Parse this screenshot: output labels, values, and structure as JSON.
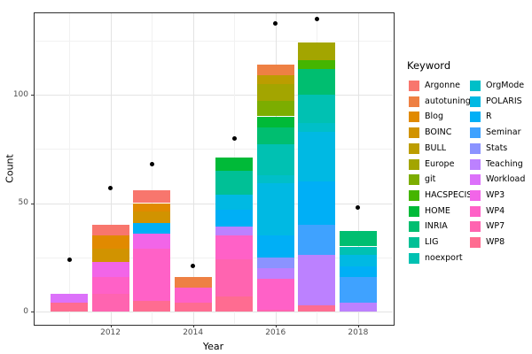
{
  "axes": {
    "x_title": "Year",
    "y_title": "Count",
    "y_major_ticks": [
      0,
      50,
      100
    ],
    "y_minor_ticks": [
      25,
      75,
      125
    ],
    "x_major_ticks": [
      2012,
      2014,
      2016,
      2018
    ],
    "x_minor_ticks": [
      2011,
      2013,
      2015,
      2017
    ]
  },
  "legend": {
    "title": "Keyword",
    "items": [
      {
        "label": "Argonne",
        "color": "#F8766D"
      },
      {
        "label": "autotuning",
        "color": "#EE8043"
      },
      {
        "label": "Blog",
        "color": "#E18A00"
      },
      {
        "label": "BOINC",
        "color": "#D19300"
      },
      {
        "label": "BULL",
        "color": "#BC9D00"
      },
      {
        "label": "Europe",
        "color": "#A3A500"
      },
      {
        "label": "git",
        "color": "#7CAD00"
      },
      {
        "label": "HACSPECIS",
        "color": "#45B500"
      },
      {
        "label": "HOME",
        "color": "#00BA38"
      },
      {
        "label": "INRIA",
        "color": "#00BE70"
      },
      {
        "label": "LIG",
        "color": "#00C096"
      },
      {
        "label": "noexport",
        "color": "#00C1B2"
      },
      {
        "label": "OrgMode",
        "color": "#00BFC8"
      },
      {
        "label": "POLARIS",
        "color": "#00B9E3"
      },
      {
        "label": "R",
        "color": "#00AFF6"
      },
      {
        "label": "Seminar",
        "color": "#3FA2FF"
      },
      {
        "label": "Stats",
        "color": "#8B93FF"
      },
      {
        "label": "Teaching",
        "color": "#BC81FF"
      },
      {
        "label": "Workload",
        "color": "#DC71FA"
      },
      {
        "label": "WP3",
        "color": "#F265E8"
      },
      {
        "label": "WP4",
        "color": "#FF61C7"
      },
      {
        "label": "WP7",
        "color": "#FF64B0"
      },
      {
        "label": "WP8",
        "color": "#FF6C91"
      }
    ],
    "column_split": 12
  },
  "chart_data": {
    "type": "bar",
    "stacked": true,
    "title": "",
    "xlabel": "Year",
    "ylabel": "Count",
    "ylim": [
      0,
      140
    ],
    "grid": true,
    "legend_position": "right",
    "categories": [
      2011,
      2012,
      2013,
      2014,
      2015,
      2016,
      2017,
      2018
    ],
    "series": [
      {
        "name": "Argonne",
        "values": [
          0,
          5,
          6,
          0,
          0,
          0,
          0,
          0
        ]
      },
      {
        "name": "autotuning",
        "values": [
          0,
          0,
          0,
          5,
          0,
          5,
          0,
          0
        ]
      },
      {
        "name": "Blog",
        "values": [
          0,
          6,
          4,
          0,
          0,
          0,
          0,
          0
        ]
      },
      {
        "name": "BOINC",
        "values": [
          0,
          6,
          5,
          0,
          0,
          0,
          0,
          0
        ]
      },
      {
        "name": "BULL",
        "values": [
          0,
          0,
          0,
          0,
          0,
          4,
          0,
          0
        ]
      },
      {
        "name": "Europe",
        "values": [
          0,
          0,
          0,
          0,
          0,
          8,
          8,
          0
        ]
      },
      {
        "name": "git",
        "values": [
          0,
          0,
          0,
          0,
          0,
          7,
          0,
          0
        ]
      },
      {
        "name": "HACSPECIS",
        "values": [
          0,
          0,
          0,
          0,
          0,
          0,
          4,
          0
        ]
      },
      {
        "name": "HOME",
        "values": [
          0,
          0,
          0,
          0,
          6,
          5,
          0,
          0
        ]
      },
      {
        "name": "INRIA",
        "values": [
          0,
          0,
          0,
          0,
          0,
          8,
          12,
          7
        ]
      },
      {
        "name": "LIG",
        "values": [
          0,
          0,
          0,
          0,
          11,
          0,
          0,
          0
        ]
      },
      {
        "name": "noexport",
        "values": [
          0,
          0,
          0,
          0,
          0,
          14,
          13,
          4
        ]
      },
      {
        "name": "OrgMode",
        "values": [
          0,
          0,
          0,
          0,
          0,
          4,
          4,
          0
        ]
      },
      {
        "name": "POLARIS",
        "values": [
          0,
          0,
          0,
          0,
          7,
          24,
          23,
          5
        ]
      },
      {
        "name": "R",
        "values": [
          0,
          0,
          5,
          0,
          8,
          10,
          20,
          5
        ]
      },
      {
        "name": "Seminar",
        "values": [
          0,
          0,
          0,
          0,
          0,
          0,
          14,
          12
        ]
      },
      {
        "name": "Stats",
        "values": [
          0,
          0,
          0,
          0,
          0,
          5,
          0,
          0
        ]
      },
      {
        "name": "Teaching",
        "values": [
          0,
          0,
          0,
          0,
          4,
          5,
          23,
          4
        ]
      },
      {
        "name": "Workload",
        "values": [
          4,
          0,
          0,
          0,
          0,
          0,
          0,
          0
        ]
      },
      {
        "name": "WP3",
        "values": [
          0,
          7,
          7,
          0,
          0,
          0,
          0,
          0
        ]
      },
      {
        "name": "WP4",
        "values": [
          0,
          8,
          24,
          7,
          11,
          14,
          0,
          0
        ]
      },
      {
        "name": "WP7",
        "values": [
          0,
          8,
          0,
          0,
          17,
          1,
          0,
          0
        ]
      },
      {
        "name": "WP8",
        "values": [
          4,
          0,
          5,
          4,
          7,
          0,
          3,
          0
        ]
      }
    ],
    "points": {
      "name": "yearly-total-dots",
      "values": [
        24,
        57,
        68,
        21,
        80,
        133,
        135,
        48
      ]
    },
    "bar_totals": [
      8,
      40,
      56,
      16,
      71,
      114,
      124,
      37
    ]
  }
}
